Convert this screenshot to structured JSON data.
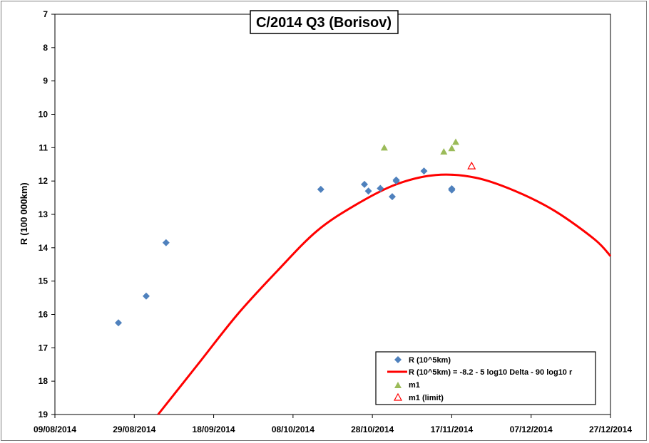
{
  "chart_data": {
    "type": "scatter",
    "title": "C/2014 Q3 (Borisov)",
    "xlabel": "",
    "ylabel": "R (100 000km)",
    "x_ticks": [
      "09/08/2014",
      "29/08/2014",
      "18/09/2014",
      "08/10/2014",
      "28/10/2014",
      "17/11/2014",
      "07/12/2014",
      "27/12/2014"
    ],
    "y_ticks": [
      "7",
      "8",
      "9",
      "10",
      "11",
      "12",
      "13",
      "14",
      "15",
      "16",
      "17",
      "18",
      "19"
    ],
    "xlim": [
      "2014-08-09",
      "2014-12-27"
    ],
    "ylim": [
      19,
      7
    ],
    "y_axis_inverted": true,
    "grid": false,
    "legend_position": "bottom-right",
    "colors": {
      "R": "#4f81bd",
      "fit": "#ff0000",
      "m1": "#9bbb59",
      "m1_limit": "#ff0000"
    },
    "series": [
      {
        "name": "R (10^5km)",
        "marker": "diamond",
        "points": [
          [
            "2014-08-25",
            16.25
          ],
          [
            "2014-09-01",
            15.45
          ],
          [
            "2014-09-06",
            13.85
          ],
          [
            "2014-10-15",
            12.25
          ],
          [
            "2014-10-26",
            12.1
          ],
          [
            "2014-10-27",
            12.3
          ],
          [
            "2014-10-30",
            12.22
          ],
          [
            "2014-11-02",
            12.47
          ],
          [
            "2014-11-03",
            12.0
          ],
          [
            "2014-11-03",
            11.97
          ],
          [
            "2014-11-10",
            11.7
          ],
          [
            "2014-11-17",
            12.23
          ],
          [
            "2014-11-17",
            12.27
          ]
        ]
      },
      {
        "name": "R (10^5km) = -8.2 - 5 log10 Delta - 90 log10 r",
        "marker": "line",
        "points": [
          [
            "2014-09-04",
            19.0
          ],
          [
            "2014-09-14",
            17.5
          ],
          [
            "2014-09-24",
            16.0
          ],
          [
            "2014-10-04",
            14.7
          ],
          [
            "2014-10-14",
            13.5
          ],
          [
            "2014-10-24",
            12.7
          ],
          [
            "2014-11-03",
            12.1
          ],
          [
            "2014-11-13",
            11.82
          ],
          [
            "2014-11-23",
            11.9
          ],
          [
            "2014-12-03",
            12.3
          ],
          [
            "2014-12-13",
            12.9
          ],
          [
            "2014-12-23",
            13.75
          ],
          [
            "2014-12-27",
            14.25
          ]
        ]
      },
      {
        "name": "m1",
        "marker": "triangle",
        "points": [
          [
            "2014-10-31",
            11.0
          ],
          [
            "2014-11-15",
            11.12
          ],
          [
            "2014-11-17",
            11.02
          ],
          [
            "2014-11-18",
            10.83
          ]
        ]
      },
      {
        "name": "m1 (limit)",
        "marker": "triangle-open",
        "points": [
          [
            "2014-11-22",
            11.55
          ]
        ]
      }
    ]
  }
}
